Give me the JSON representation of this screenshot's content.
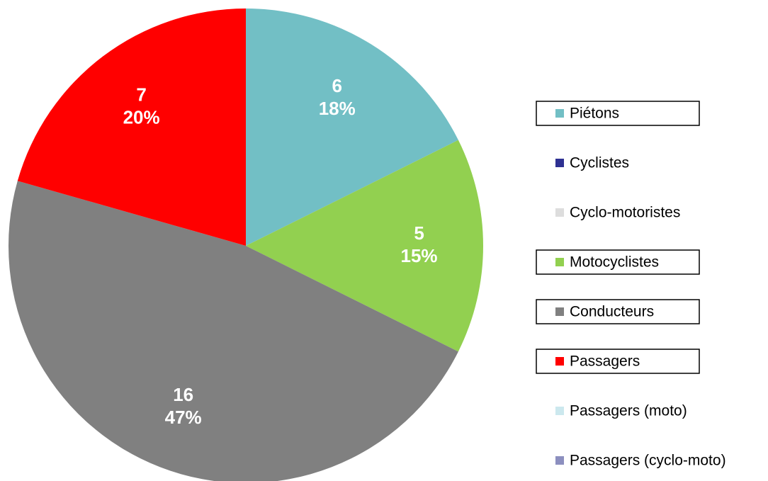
{
  "chart_data": {
    "type": "pie",
    "categories": [
      "Piétons",
      "Cyclistes",
      "Cyclo-motoristes",
      "Motocyclistes",
      "Conducteurs",
      "Passagers",
      "Passagers (moto)",
      "Passagers (cyclo-moto)"
    ],
    "values": [
      6,
      0,
      0,
      5,
      16,
      7,
      0,
      0
    ],
    "percent_labels": [
      "18%",
      null,
      null,
      "15%",
      "47%",
      "20%",
      null,
      null
    ],
    "colors": [
      "#72bfc5",
      "#2e3192",
      "#dddddd",
      "#92d050",
      "#808080",
      "#ff0000",
      "#cce8ee",
      "#8c8fbf"
    ],
    "legend": "right"
  }
}
